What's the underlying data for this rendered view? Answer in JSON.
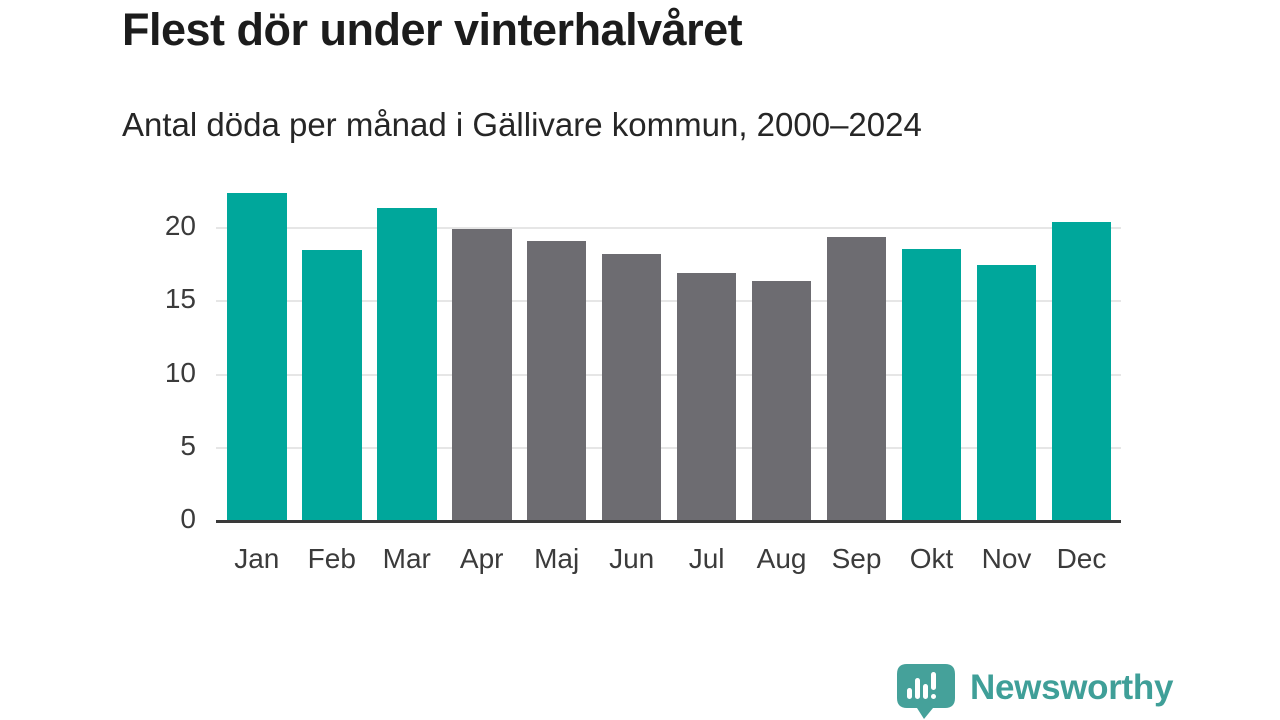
{
  "header": {
    "title": "Flest dör under vinterhalvåret",
    "subtitle": "Antal döda per månad i Gällivare kommun, 2000–2024"
  },
  "chart_data": {
    "type": "bar",
    "title": "Flest dör under vinterhalvåret",
    "subtitle": "Antal döda per månad i Gällivare kommun, 2000–2024",
    "categories": [
      "Jan",
      "Feb",
      "Mar",
      "Apr",
      "Maj",
      "Jun",
      "Jul",
      "Aug",
      "Sep",
      "Okt",
      "Nov",
      "Dec"
    ],
    "values": [
      22.4,
      18.5,
      21.4,
      19.9,
      19.1,
      18.2,
      16.9,
      16.4,
      19.4,
      18.6,
      17.5,
      20.4
    ],
    "colors": [
      "winter",
      "winter",
      "winter",
      "summer",
      "summer",
      "summer",
      "summer",
      "summer",
      "summer",
      "winter",
      "winter",
      "winter"
    ],
    "palette": {
      "winter": "#00a79b",
      "summer": "#6d6c71"
    },
    "xlabel": "",
    "ylabel": "",
    "ylim": [
      0,
      22.5
    ],
    "yticks": [
      0,
      5,
      10,
      15,
      20
    ],
    "grid": true,
    "legend": "none"
  },
  "footer": {
    "brand": "Newsworthy",
    "brand_color": "#3f9f98",
    "logo_icon": "bar-chart-speech-bubble-icon"
  }
}
